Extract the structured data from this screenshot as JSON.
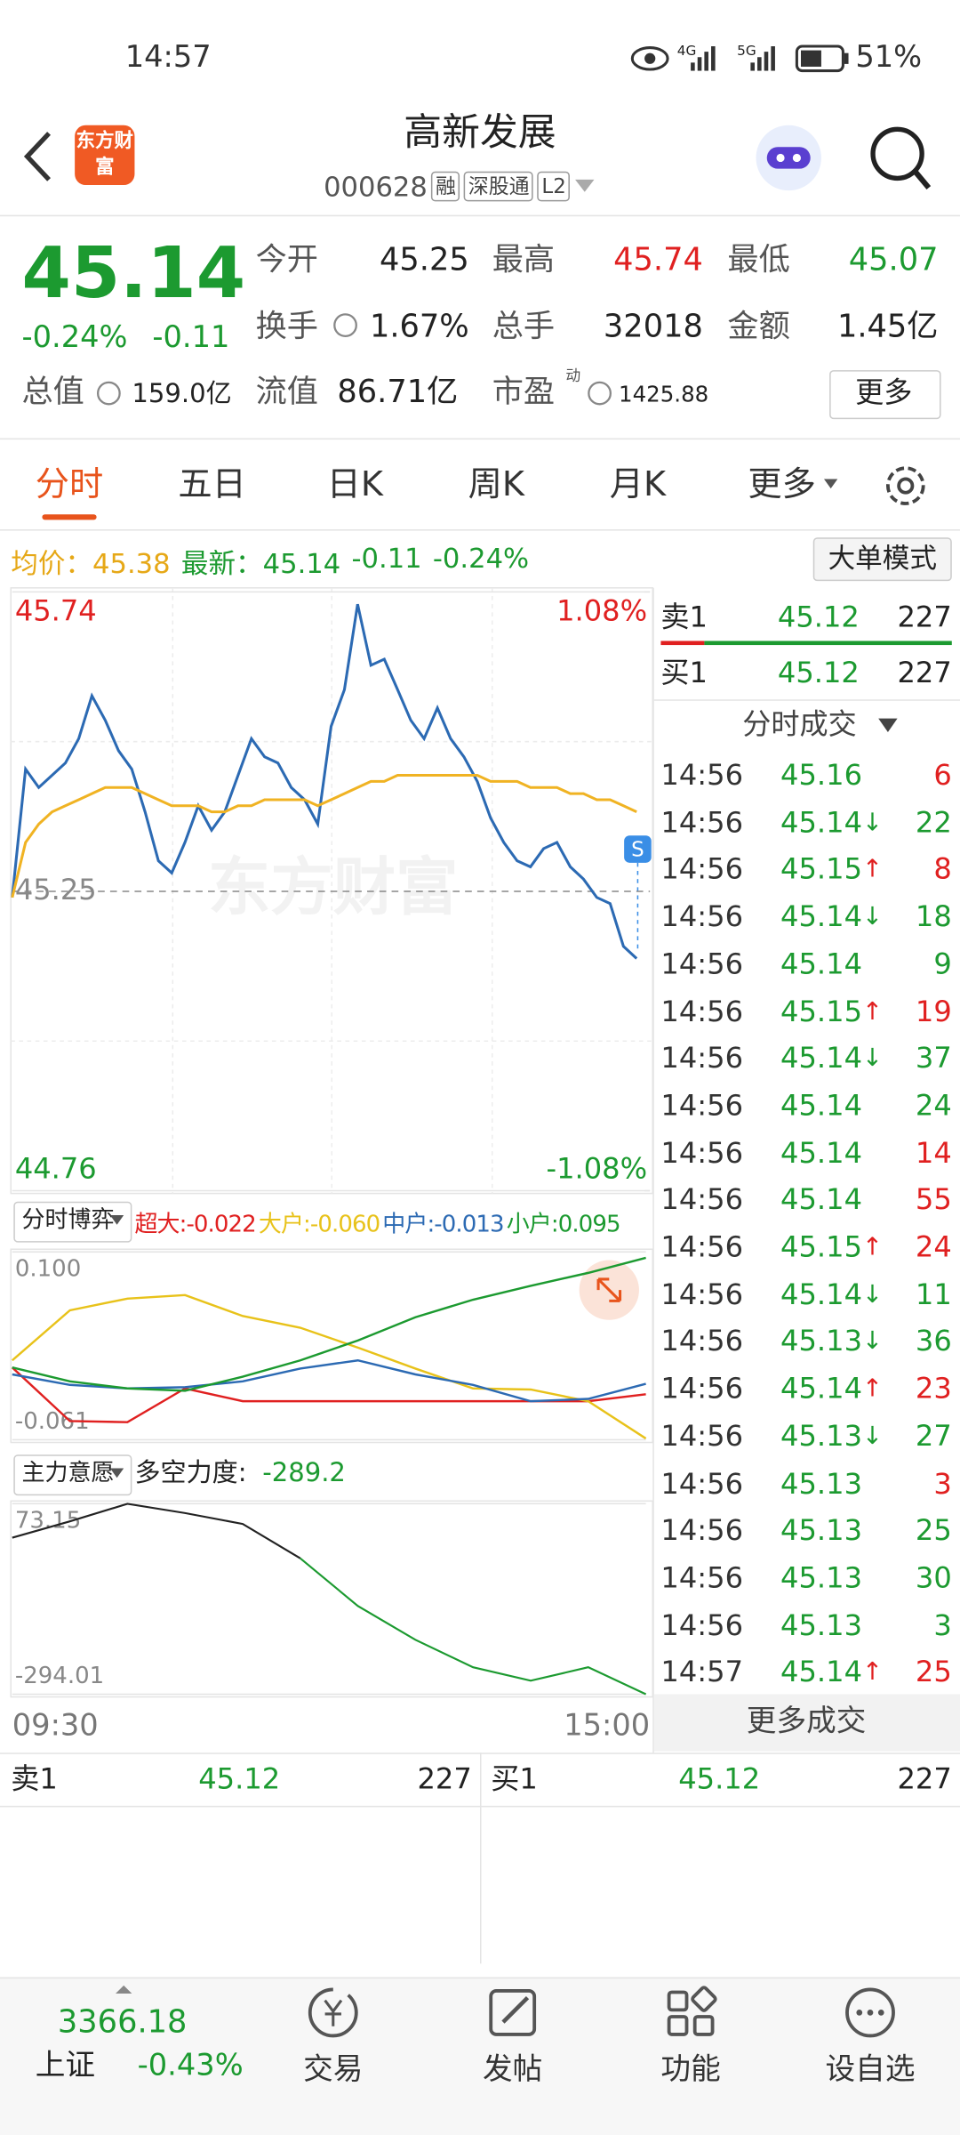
{
  "status_bar": {
    "time": "14:57",
    "net1": "4G",
    "net2": "5G",
    "battery": "51%"
  },
  "header": {
    "logo": "东方财富",
    "title": "高新发展",
    "code": "000628",
    "tags": [
      "融",
      "深股通",
      "L2"
    ]
  },
  "quote": {
    "price": "45.14",
    "change_pct": "-0.24%",
    "change": "-0.11",
    "open": {
      "label": "今开",
      "value": "45.25"
    },
    "high": {
      "label": "最高",
      "value": "45.74"
    },
    "low": {
      "label": "最低",
      "value": "45.07"
    },
    "turnover": {
      "label": "换手",
      "value": "1.67%"
    },
    "volume": {
      "label": "总手",
      "value": "32018"
    },
    "amount": {
      "label": "金额",
      "value": "1.45亿"
    },
    "total_cap": {
      "label": "总值",
      "value": "159.0亿"
    },
    "float_cap": {
      "label": "流值",
      "value": "86.71亿"
    },
    "pe": {
      "label": "市盈",
      "note": "动",
      "value": "1425.88"
    },
    "more": "更多"
  },
  "tabs": {
    "items": [
      "分时",
      "五日",
      "日K",
      "周K",
      "月K",
      "更多"
    ],
    "active": 0
  },
  "info": {
    "avg_label": "均价：",
    "avg": "45.38",
    "latest_label": "最新：",
    "latest": "45.14",
    "change": "-0.11",
    "change_pct": "-0.24%",
    "button": "大单模式"
  },
  "chart_data": [
    {
      "type": "line",
      "watermark": "东方财富",
      "signal_marker": "S",
      "xlim": [
        "09:30",
        "15:00"
      ],
      "ylim": [
        44.76,
        45.74
      ],
      "yticks": [
        45.74,
        45.25,
        44.76
      ],
      "y2lim": [
        -1.08,
        1.08
      ],
      "y2ticks": [
        {
          "value": 1.08,
          "label": "1.08%"
        },
        {
          "value": -1.08,
          "label": "-1.08%"
        }
      ],
      "series": [
        {
          "color": "#2c6ab3",
          "values": [
            45.24,
            45.45,
            45.42,
            45.44,
            45.46,
            45.5,
            45.57,
            45.53,
            45.48,
            45.45,
            45.38,
            45.3,
            45.28,
            45.33,
            45.39,
            45.35,
            45.38,
            45.44,
            45.5,
            45.47,
            45.46,
            45.42,
            45.4,
            45.36,
            45.52,
            45.58,
            45.72,
            45.62,
            45.63,
            45.58,
            45.53,
            45.5,
            45.55,
            45.5,
            45.47,
            45.43,
            45.37,
            45.33,
            45.3,
            45.29,
            45.32,
            45.33,
            45.29,
            45.27,
            45.24,
            45.23,
            45.16,
            45.14
          ]
        },
        {
          "color": "#f0b323",
          "values": [
            45.24,
            45.33,
            45.36,
            45.38,
            45.39,
            45.4,
            45.41,
            45.42,
            45.42,
            45.42,
            45.41,
            45.4,
            45.39,
            45.39,
            45.39,
            45.38,
            45.38,
            45.39,
            45.39,
            45.4,
            45.4,
            45.4,
            45.4,
            45.39,
            45.4,
            45.41,
            45.42,
            45.43,
            45.43,
            45.44,
            45.44,
            45.44,
            45.44,
            45.44,
            45.44,
            45.44,
            45.43,
            45.43,
            45.43,
            45.42,
            45.42,
            45.42,
            45.41,
            45.41,
            45.4,
            45.4,
            45.39,
            45.38
          ]
        }
      ]
    },
    {
      "type": "line",
      "selector": "分时博弈",
      "ylim": [
        -0.061,
        0.1
      ],
      "yticks": [
        {
          "value": 0.1,
          "label": "0.100"
        },
        -0.061
      ],
      "series": [
        {
          "name": "超大:-0.022",
          "color": "#e02020",
          "values": [
            0.001,
            -0.045,
            -0.046,
            -0.017,
            -0.028,
            -0.028,
            -0.028,
            -0.028,
            -0.028,
            -0.028,
            -0.028,
            -0.022
          ]
        },
        {
          "name": "大户:-0.060",
          "color": "#e8c21a",
          "values": [
            0.007,
            0.05,
            0.06,
            0.063,
            0.045,
            0.035,
            0.018,
            0.0,
            -0.017,
            -0.018,
            -0.028,
            -0.06
          ]
        },
        {
          "name": "中户:-0.013",
          "color": "#2c6ab3",
          "values": [
            -0.005,
            -0.014,
            -0.017,
            -0.016,
            -0.011,
            0.0,
            0.007,
            -0.005,
            -0.014,
            -0.028,
            -0.026,
            -0.013
          ]
        },
        {
          "name": "小户:0.095",
          "color": "#1c9a30",
          "values": [
            0.001,
            -0.011,
            -0.017,
            -0.019,
            -0.007,
            0.007,
            0.024,
            0.044,
            0.059,
            0.071,
            0.082,
            0.095
          ]
        }
      ]
    },
    {
      "type": "line",
      "selector": "主力意愿",
      "metric_label": "多空力度:",
      "metric_value": "-289.2",
      "ylim": [
        -294.01,
        73.15
      ],
      "yticks": [
        73.15,
        -294.01
      ],
      "series": [
        {
          "color": "#222222",
          "values": [
            7.6,
            39,
            73,
            55,
            34,
            -32,
            null,
            null,
            null,
            null,
            null,
            null
          ]
        },
        {
          "color": "#1c9a30",
          "values": [
            null,
            null,
            null,
            null,
            null,
            -32,
            -124,
            -189,
            -242,
            -268,
            -242,
            -294
          ]
        }
      ]
    }
  ],
  "order_book": {
    "ask_label": "卖1",
    "ask_price": "45.12",
    "ask_vol": "227",
    "bid_label": "买1",
    "bid_price": "45.12",
    "bid_vol": "227"
  },
  "trades": {
    "title": "分时成交",
    "more": "更多成交",
    "rows": [
      {
        "time": "14:56",
        "price": "45.16",
        "vol": "6",
        "vol_color": "red"
      },
      {
        "time": "14:56",
        "price": "45.14",
        "dir": "↓",
        "vol": "22",
        "vol_color": "green"
      },
      {
        "time": "14:56",
        "price": "45.15",
        "dir": "↑",
        "vol": "8",
        "vol_color": "red"
      },
      {
        "time": "14:56",
        "price": "45.14",
        "dir": "↓",
        "vol": "18",
        "vol_color": "green"
      },
      {
        "time": "14:56",
        "price": "45.14",
        "vol": "9",
        "vol_color": "green"
      },
      {
        "time": "14:56",
        "price": "45.15",
        "dir": "↑",
        "vol": "19",
        "vol_color": "red"
      },
      {
        "time": "14:56",
        "price": "45.14",
        "dir": "↓",
        "vol": "37",
        "vol_color": "green"
      },
      {
        "time": "14:56",
        "price": "45.14",
        "vol": "24",
        "vol_color": "green"
      },
      {
        "time": "14:56",
        "price": "45.14",
        "vol": "14",
        "vol_color": "red"
      },
      {
        "time": "14:56",
        "price": "45.14",
        "vol": "55",
        "vol_color": "red"
      },
      {
        "time": "14:56",
        "price": "45.15",
        "dir": "↑",
        "vol": "24",
        "vol_color": "red"
      },
      {
        "time": "14:56",
        "price": "45.14",
        "dir": "↓",
        "vol": "11",
        "vol_color": "green"
      },
      {
        "time": "14:56",
        "price": "45.13",
        "dir": "↓",
        "vol": "36",
        "vol_color": "green"
      },
      {
        "time": "14:56",
        "price": "45.14",
        "dir": "↑",
        "vol": "23",
        "vol_color": "red"
      },
      {
        "time": "14:56",
        "price": "45.13",
        "dir": "↓",
        "vol": "27",
        "vol_color": "green"
      },
      {
        "time": "14:56",
        "price": "45.13",
        "vol": "3",
        "vol_color": "red"
      },
      {
        "time": "14:56",
        "price": "45.13",
        "vol": "25",
        "vol_color": "green"
      },
      {
        "time": "14:56",
        "price": "45.13",
        "vol": "30",
        "vol_color": "green"
      },
      {
        "time": "14:56",
        "price": "45.13",
        "vol": "3",
        "vol_color": "green"
      },
      {
        "time": "14:57",
        "price": "45.14",
        "dir": "↑",
        "vol": "25",
        "vol_color": "red"
      }
    ]
  },
  "nav": {
    "index_value": "3366.18",
    "index_name": "上证",
    "index_change": "-0.43%",
    "items": [
      "交易",
      "发帖",
      "功能",
      "设自选"
    ]
  }
}
